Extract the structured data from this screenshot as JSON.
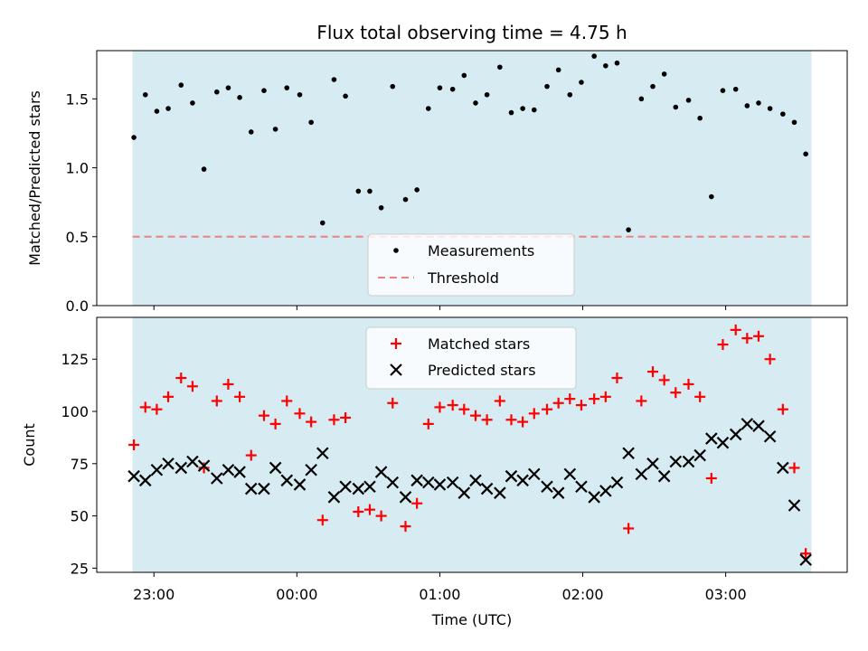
{
  "chart_data": [
    {
      "type": "scatter",
      "title": "Flux total observing time = 4.75 h",
      "xlabel": "",
      "ylabel": "Matched/Predicted stars",
      "ylim": [
        0,
        1.85
      ],
      "yticks": [
        0.0,
        0.5,
        1.0,
        1.5
      ],
      "ytick_labels": [
        "0.0",
        "0.5",
        "1.0",
        "1.5"
      ],
      "shaded_span": {
        "start_hour": -1.15,
        "end_hour": 3.6,
        "color": "#add8e6"
      },
      "threshold": {
        "label": "Threshold",
        "value": 0.5,
        "color": "#f08080"
      },
      "legend": {
        "location": "lower-center",
        "entries": [
          "Measurements",
          "Threshold"
        ]
      },
      "series": [
        {
          "name": "Measurements",
          "color": "#000000",
          "x": [
            -1.14,
            -1.06,
            -0.98,
            -0.9,
            -0.81,
            -0.73,
            -0.65,
            -0.56,
            -0.48,
            -0.4,
            -0.32,
            -0.23,
            -0.15,
            -0.07,
            0.02,
            0.1,
            0.18,
            0.26,
            0.34,
            0.43,
            0.51,
            0.59,
            0.67,
            0.76,
            0.84,
            0.92,
            1.0,
            1.09,
            1.17,
            1.25,
            1.33,
            1.42,
            1.5,
            1.58,
            1.66,
            1.75,
            1.83,
            1.91,
            1.99,
            2.08,
            2.16,
            2.24,
            2.32,
            2.41,
            2.49,
            2.57,
            2.65,
            2.74,
            2.82,
            2.9,
            2.98,
            3.07,
            3.15,
            3.23,
            3.31,
            3.4,
            3.48,
            3.56
          ],
          "y": [
            1.22,
            1.53,
            1.41,
            1.43,
            1.6,
            1.47,
            0.99,
            1.55,
            1.58,
            1.51,
            1.26,
            1.56,
            1.28,
            1.58,
            1.53,
            1.33,
            0.6,
            1.64,
            1.52,
            0.83,
            0.83,
            0.71,
            1.59,
            0.77,
            0.84,
            1.43,
            1.58,
            1.57,
            1.67,
            1.47,
            1.53,
            1.73,
            1.4,
            1.43,
            1.42,
            1.59,
            1.71,
            1.53,
            1.62,
            1.81,
            1.74,
            1.76,
            0.55,
            1.5,
            1.59,
            1.68,
            1.44,
            1.49,
            1.36,
            0.79,
            1.56,
            1.57,
            1.45,
            1.47,
            1.43,
            1.39,
            1.33,
            1.1
          ]
        }
      ]
    },
    {
      "type": "scatter",
      "title": "",
      "xlabel": "Time (UTC)",
      "ylabel": "Count",
      "ylim": [
        23,
        145
      ],
      "yticks": [
        25,
        50,
        75,
        100,
        125
      ],
      "ytick_labels": [
        "25",
        "50",
        "75",
        "100",
        "125"
      ],
      "xlim": [
        -1.4,
        3.85
      ],
      "xticks": [
        -1,
        0,
        1,
        2,
        3
      ],
      "xtick_labels": [
        "23:00",
        "00:00",
        "01:00",
        "02:00",
        "03:00"
      ],
      "shaded_span": {
        "start_hour": -1.15,
        "end_hour": 3.6,
        "color": "#add8e6"
      },
      "legend": {
        "location": "upper-center",
        "entries": [
          "Matched stars",
          "Predicted stars"
        ]
      },
      "series": [
        {
          "name": "Matched stars",
          "marker": "plus",
          "color": "#ff0000",
          "x": [
            -1.14,
            -1.06,
            -0.98,
            -0.9,
            -0.81,
            -0.73,
            -0.65,
            -0.56,
            -0.48,
            -0.4,
            -0.32,
            -0.23,
            -0.15,
            -0.07,
            0.02,
            0.1,
            0.18,
            0.26,
            0.34,
            0.43,
            0.51,
            0.59,
            0.67,
            0.76,
            0.84,
            0.92,
            1.0,
            1.09,
            1.17,
            1.25,
            1.33,
            1.42,
            1.5,
            1.58,
            1.66,
            1.75,
            1.83,
            1.91,
            1.99,
            2.08,
            2.16,
            2.24,
            2.32,
            2.41,
            2.49,
            2.57,
            2.65,
            2.74,
            2.82,
            2.9,
            2.98,
            3.07,
            3.15,
            3.23,
            3.31,
            3.4,
            3.48,
            3.56
          ],
          "y": [
            84,
            102,
            101,
            107,
            116,
            112,
            73,
            105,
            113,
            107,
            79,
            98,
            94,
            105,
            99,
            95,
            48,
            96,
            97,
            52,
            53,
            50,
            104,
            45,
            56,
            94,
            102,
            103,
            101,
            98,
            96,
            105,
            96,
            95,
            99,
            101,
            104,
            106,
            103,
            106,
            107,
            116,
            44,
            105,
            119,
            115,
            109,
            113,
            107,
            68,
            132,
            139,
            135,
            136,
            125,
            101,
            73,
            32
          ]
        },
        {
          "name": "Predicted stars",
          "marker": "x",
          "color": "#000000",
          "x": [
            -1.14,
            -1.06,
            -0.98,
            -0.9,
            -0.81,
            -0.73,
            -0.65,
            -0.56,
            -0.48,
            -0.4,
            -0.32,
            -0.23,
            -0.15,
            -0.07,
            0.02,
            0.1,
            0.18,
            0.26,
            0.34,
            0.43,
            0.51,
            0.59,
            0.67,
            0.76,
            0.84,
            0.92,
            1.0,
            1.09,
            1.17,
            1.25,
            1.33,
            1.42,
            1.5,
            1.58,
            1.66,
            1.75,
            1.83,
            1.91,
            1.99,
            2.08,
            2.16,
            2.24,
            2.32,
            2.41,
            2.49,
            2.57,
            2.65,
            2.74,
            2.82,
            2.9,
            2.98,
            3.07,
            3.15,
            3.23,
            3.31,
            3.4,
            3.48,
            3.56
          ],
          "y": [
            69,
            67,
            72,
            75,
            73,
            76,
            74,
            68,
            72,
            71,
            63,
            63,
            73,
            67,
            65,
            72,
            80,
            59,
            64,
            63,
            64,
            71,
            66,
            59,
            67,
            66,
            65,
            66,
            61,
            67,
            63,
            61,
            69,
            67,
            70,
            64,
            61,
            70,
            64,
            59,
            62,
            66,
            80,
            70,
            75,
            69,
            76,
            76,
            79,
            87,
            85,
            89,
            94,
            93,
            88,
            73,
            55,
            29
          ]
        }
      ]
    }
  ]
}
